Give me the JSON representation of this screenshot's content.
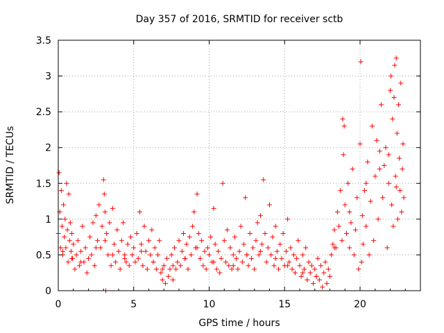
{
  "chart_data": {
    "type": "scatter",
    "title": "Day 357 of 2016, SRMTID for receiver sctb",
    "xlabel": "GPS time / hours",
    "ylabel": "SRMTID / TECUs",
    "xlim": [
      0,
      24
    ],
    "ylim": [
      0,
      3.5
    ],
    "xticks": [
      0,
      5,
      10,
      15,
      20
    ],
    "xtick_labels": [
      "0",
      "5",
      "10",
      "15",
      "20"
    ],
    "yticks": [
      0,
      0.5,
      1,
      1.5,
      2,
      2.5,
      3,
      3.5
    ],
    "ytick_labels": [
      "0",
      "0.5",
      "1",
      "1.5",
      "2",
      "2.5",
      "3",
      "3.5"
    ],
    "grid": true,
    "marker": "+",
    "color": "#ff0000",
    "series": [
      {
        "name": "SRMTID",
        "x": [
          0.0,
          0.05,
          0.1,
          0.15,
          0.2,
          0.25,
          0.3,
          0.35,
          0.4,
          0.45,
          0.5,
          0.55,
          0.6,
          0.65,
          0.7,
          0.75,
          0.8,
          0.85,
          0.9,
          0.95,
          1.0,
          1.1,
          1.2,
          1.3,
          1.4,
          1.5,
          1.6,
          1.7,
          1.8,
          1.9,
          2.0,
          2.1,
          2.2,
          2.3,
          2.4,
          2.5,
          2.6,
          2.7,
          2.8,
          2.9,
          3.0,
          3.05,
          3.1,
          3.15,
          3.2,
          3.3,
          3.4,
          3.5,
          3.6,
          3.7,
          3.8,
          3.9,
          4.0,
          4.1,
          4.2,
          4.3,
          4.4,
          4.5,
          4.6,
          4.7,
          4.8,
          4.9,
          5.0,
          5.1,
          5.2,
          5.3,
          5.4,
          5.5,
          5.6,
          5.7,
          5.8,
          5.9,
          6.0,
          6.1,
          6.2,
          6.3,
          6.4,
          6.5,
          6.6,
          6.7,
          6.8,
          6.9,
          7.0,
          7.1,
          7.2,
          7.3,
          7.4,
          7.5,
          7.6,
          7.7,
          7.8,
          7.9,
          8.0,
          8.1,
          8.2,
          8.3,
          8.4,
          8.5,
          8.6,
          8.7,
          8.8,
          8.9,
          9.0,
          9.1,
          9.2,
          9.3,
          9.4,
          9.5,
          9.6,
          9.7,
          9.8,
          9.9,
          10.0,
          10.1,
          10.2,
          10.3,
          10.4,
          10.5,
          10.6,
          10.7,
          10.8,
          10.9,
          11.0,
          11.1,
          11.2,
          11.3,
          11.4,
          11.5,
          11.6,
          11.7,
          11.8,
          11.9,
          12.0,
          12.1,
          12.2,
          12.3,
          12.4,
          12.5,
          12.6,
          12.7,
          12.8,
          12.9,
          13.0,
          13.1,
          13.2,
          13.3,
          13.4,
          13.5,
          13.6,
          13.7,
          13.8,
          13.9,
          14.0,
          14.1,
          14.2,
          14.3,
          14.4,
          14.5,
          14.6,
          14.7,
          14.8,
          14.9,
          15.0,
          15.1,
          15.2,
          15.3,
          15.4,
          15.5,
          15.6,
          15.7,
          15.8,
          15.9,
          16.0,
          16.1,
          16.2,
          16.3,
          16.4,
          16.5,
          16.6,
          16.7,
          16.8,
          16.9,
          17.0,
          17.1,
          17.2,
          17.3,
          17.4,
          17.5,
          17.6,
          17.7,
          17.8,
          17.9,
          18.0,
          18.1,
          18.2,
          18.3,
          18.4,
          18.5,
          18.6,
          18.7,
          18.8,
          18.85,
          18.9,
          18.95,
          19.0,
          19.1,
          19.2,
          19.3,
          19.4,
          19.5,
          19.6,
          19.7,
          19.8,
          19.9,
          20.0,
          20.05,
          20.1,
          20.15,
          20.2,
          20.3,
          20.4,
          20.5,
          20.6,
          20.7,
          20.8,
          20.9,
          21.0,
          21.1,
          21.2,
          21.3,
          21.4,
          21.5,
          21.6,
          21.7,
          21.8,
          21.9,
          22.0,
          22.05,
          22.1,
          22.15,
          22.2,
          22.25,
          22.3,
          22.35,
          22.4,
          22.45,
          22.5,
          22.55,
          22.6,
          22.65,
          22.7,
          22.75,
          22.8,
          22.85,
          22.9,
          0.3,
          0.9,
          1.5,
          2.5,
          3.1,
          3.6,
          4.4,
          5.5,
          6.3,
          6.9,
          7.6,
          8.4,
          9.2,
          10.3,
          11.6,
          12.5,
          13.4,
          14.4,
          15.2,
          16.2,
          17.1,
          18.3,
          19.3,
          20.4,
          21.3,
          21.9,
          22.4
        ],
        "y": [
          0.8,
          1.65,
          1.1,
          0.6,
          1.4,
          0.9,
          0.5,
          1.2,
          0.75,
          1.0,
          0.6,
          1.5,
          0.85,
          0.4,
          1.35,
          0.7,
          0.95,
          0.55,
          0.8,
          0.45,
          0.65,
          0.3,
          0.5,
          0.7,
          0.35,
          0.55,
          0.9,
          0.4,
          0.6,
          0.25,
          0.45,
          0.75,
          0.5,
          0.95,
          0.35,
          1.05,
          0.7,
          1.2,
          0.6,
          0.9,
          1.55,
          1.35,
          1.1,
          0.0,
          0.8,
          0.5,
          0.95,
          0.35,
          1.15,
          0.65,
          0.4,
          0.85,
          0.55,
          0.3,
          0.7,
          0.95,
          0.5,
          0.4,
          0.65,
          0.35,
          0.75,
          0.5,
          0.6,
          0.4,
          0.8,
          0.45,
          1.1,
          0.65,
          0.35,
          0.9,
          0.55,
          0.3,
          0.7,
          0.5,
          0.85,
          0.4,
          0.6,
          0.3,
          0.5,
          0.7,
          0.25,
          0.15,
          0.35,
          0.1,
          0.45,
          0.2,
          0.3,
          0.5,
          0.15,
          0.6,
          0.3,
          0.4,
          0.7,
          0.35,
          0.55,
          0.8,
          0.45,
          0.65,
          0.3,
          0.75,
          0.5,
          0.9,
          1.1,
          0.6,
          1.35,
          0.8,
          0.45,
          0.7,
          0.35,
          0.55,
          0.3,
          0.6,
          0.5,
          0.75,
          0.4,
          1.15,
          0.65,
          0.3,
          0.55,
          0.25,
          0.45,
          1.5,
          0.7,
          0.4,
          0.85,
          0.35,
          0.6,
          0.3,
          0.5,
          0.75,
          0.45,
          0.3,
          0.55,
          0.9,
          0.4,
          0.65,
          1.3,
          0.5,
          0.35,
          0.8,
          0.45,
          0.6,
          0.3,
          0.7,
          0.95,
          0.5,
          1.05,
          0.65,
          1.55,
          0.8,
          0.4,
          0.6,
          1.2,
          0.5,
          0.75,
          0.35,
          0.9,
          0.55,
          0.3,
          0.65,
          0.45,
          0.8,
          0.35,
          0.55,
          1.0,
          0.4,
          0.6,
          0.3,
          0.5,
          0.25,
          0.45,
          0.7,
          0.35,
          0.2,
          0.5,
          0.3,
          0.6,
          0.15,
          0.4,
          0.25,
          0.35,
          0.1,
          0.3,
          0.2,
          0.45,
          0.15,
          0.35,
          0.05,
          0.25,
          0.4,
          0.1,
          0.3,
          0.2,
          0.5,
          0.65,
          0.85,
          0.6,
          1.1,
          0.9,
          1.4,
          0.7,
          2.4,
          1.9,
          2.3,
          1.2,
          0.8,
          1.5,
          0.6,
          0.95,
          1.7,
          0.5,
          0.85,
          1.3,
          0.3,
          2.05,
          3.2,
          0.4,
          1.05,
          0.65,
          1.4,
          0.9,
          1.8,
          0.5,
          1.25,
          2.3,
          0.7,
          1.6,
          2.1,
          1.0,
          1.95,
          2.6,
          1.3,
          1.75,
          2.0,
          0.6,
          1.5,
          2.8,
          3.0,
          1.2,
          2.4,
          0.9,
          2.7,
          3.15,
          1.6,
          3.25,
          2.2,
          1.0,
          2.6,
          1.85,
          1.4,
          2.9,
          1.1,
          1.7,
          2.05,
          1.3,
          0.55,
          0.45,
          0.4,
          0.6,
          0.7,
          0.5,
          0.45,
          0.55,
          0.4,
          0.3,
          0.35,
          0.45,
          0.6,
          0.4,
          0.35,
          0.5,
          0.55,
          0.45,
          0.35,
          0.25,
          0.2,
          0.6,
          1.1,
          1.5,
          1.7,
          1.9,
          1.45
        ]
      }
    ]
  }
}
